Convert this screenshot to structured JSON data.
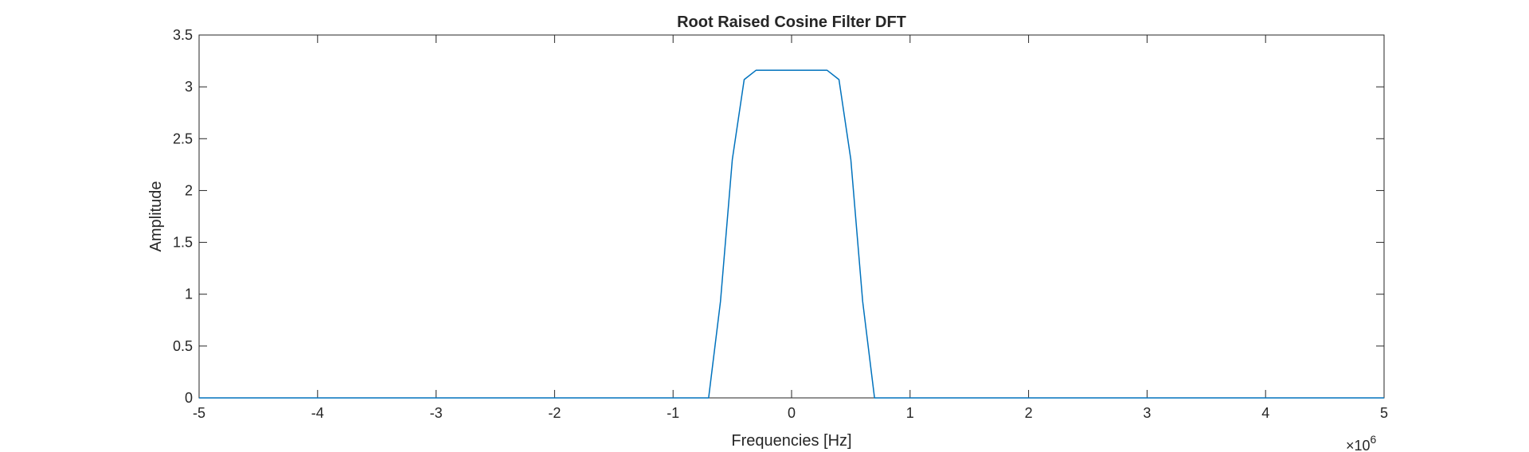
{
  "chart_data": {
    "type": "line",
    "title": "Root Raised Cosine Filter DFT",
    "xlabel": "Frequencies [Hz]",
    "ylabel": "Amplitude",
    "x_multiplier_base": "×10",
    "x_multiplier_exponent": "6",
    "xlim": [
      -5,
      5
    ],
    "ylim": [
      0,
      3.5
    ],
    "x_ticks": [
      -5,
      -4,
      -3,
      -2,
      -1,
      0,
      1,
      2,
      3,
      4,
      5
    ],
    "x_tick_labels": [
      "-5",
      "-4",
      "-3",
      "-2",
      "-1",
      "0",
      "1",
      "2",
      "3",
      "4",
      "5"
    ],
    "y_ticks": [
      0,
      0.5,
      1,
      1.5,
      2,
      2.5,
      3,
      3.5
    ],
    "y_tick_labels": [
      "0",
      "0.5",
      "1",
      "1.5",
      "2",
      "2.5",
      "3",
      "3.5"
    ],
    "grid": false,
    "legend": "none",
    "series": [
      {
        "color": "#0072BD",
        "x": [
          -5,
          -0.7,
          -0.6,
          -0.5,
          -0.4,
          -0.3,
          0,
          0.3,
          0.4,
          0.5,
          0.6,
          0.7,
          5
        ],
        "y": [
          0,
          0,
          0.93,
          2.3,
          3.07,
          3.16,
          3.16,
          3.16,
          3.07,
          2.3,
          0.93,
          0,
          0
        ]
      }
    ]
  }
}
